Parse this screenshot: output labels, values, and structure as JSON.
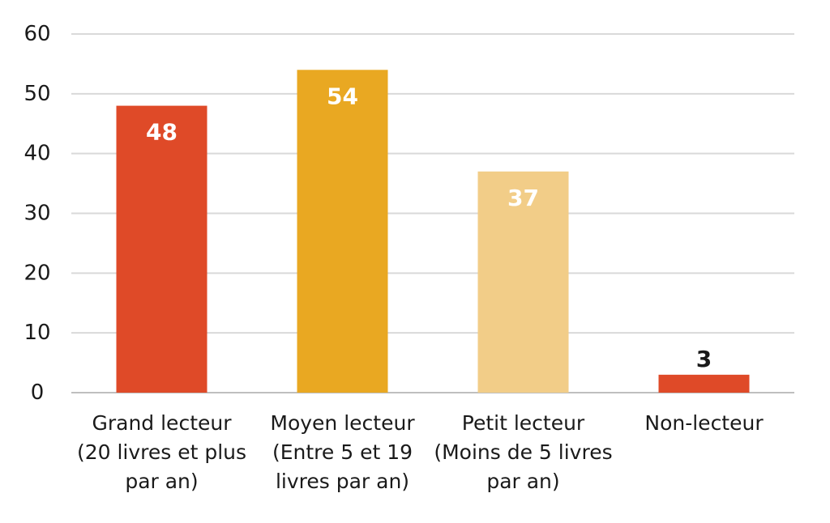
{
  "chart_data": {
    "type": "bar",
    "title": "",
    "xlabel": "",
    "ylabel": "",
    "ylim": [
      0,
      60
    ],
    "yticks": [
      0,
      10,
      20,
      30,
      40,
      50,
      60
    ],
    "grid": true,
    "legend": "none",
    "categories": [
      [
        "Grand lecteur",
        "(20 livres et plus",
        "par an)"
      ],
      [
        "Moyen lecteur",
        "(Entre 5 et 19",
        "livres par an)"
      ],
      [
        "Petit lecteur",
        "(Moins de 5 livres",
        "par an)"
      ],
      [
        "Non-lecteur"
      ]
    ],
    "values": [
      48,
      54,
      37,
      3
    ],
    "data_labels": [
      "48",
      "54",
      "37",
      "3"
    ],
    "colors": [
      "#df4a28",
      "#e9a822",
      "#f2cd88",
      "#df4a28"
    ],
    "label_colors": [
      "#ffffff",
      "#ffffff",
      "#ffffff",
      "#1a1a1a"
    ]
  }
}
